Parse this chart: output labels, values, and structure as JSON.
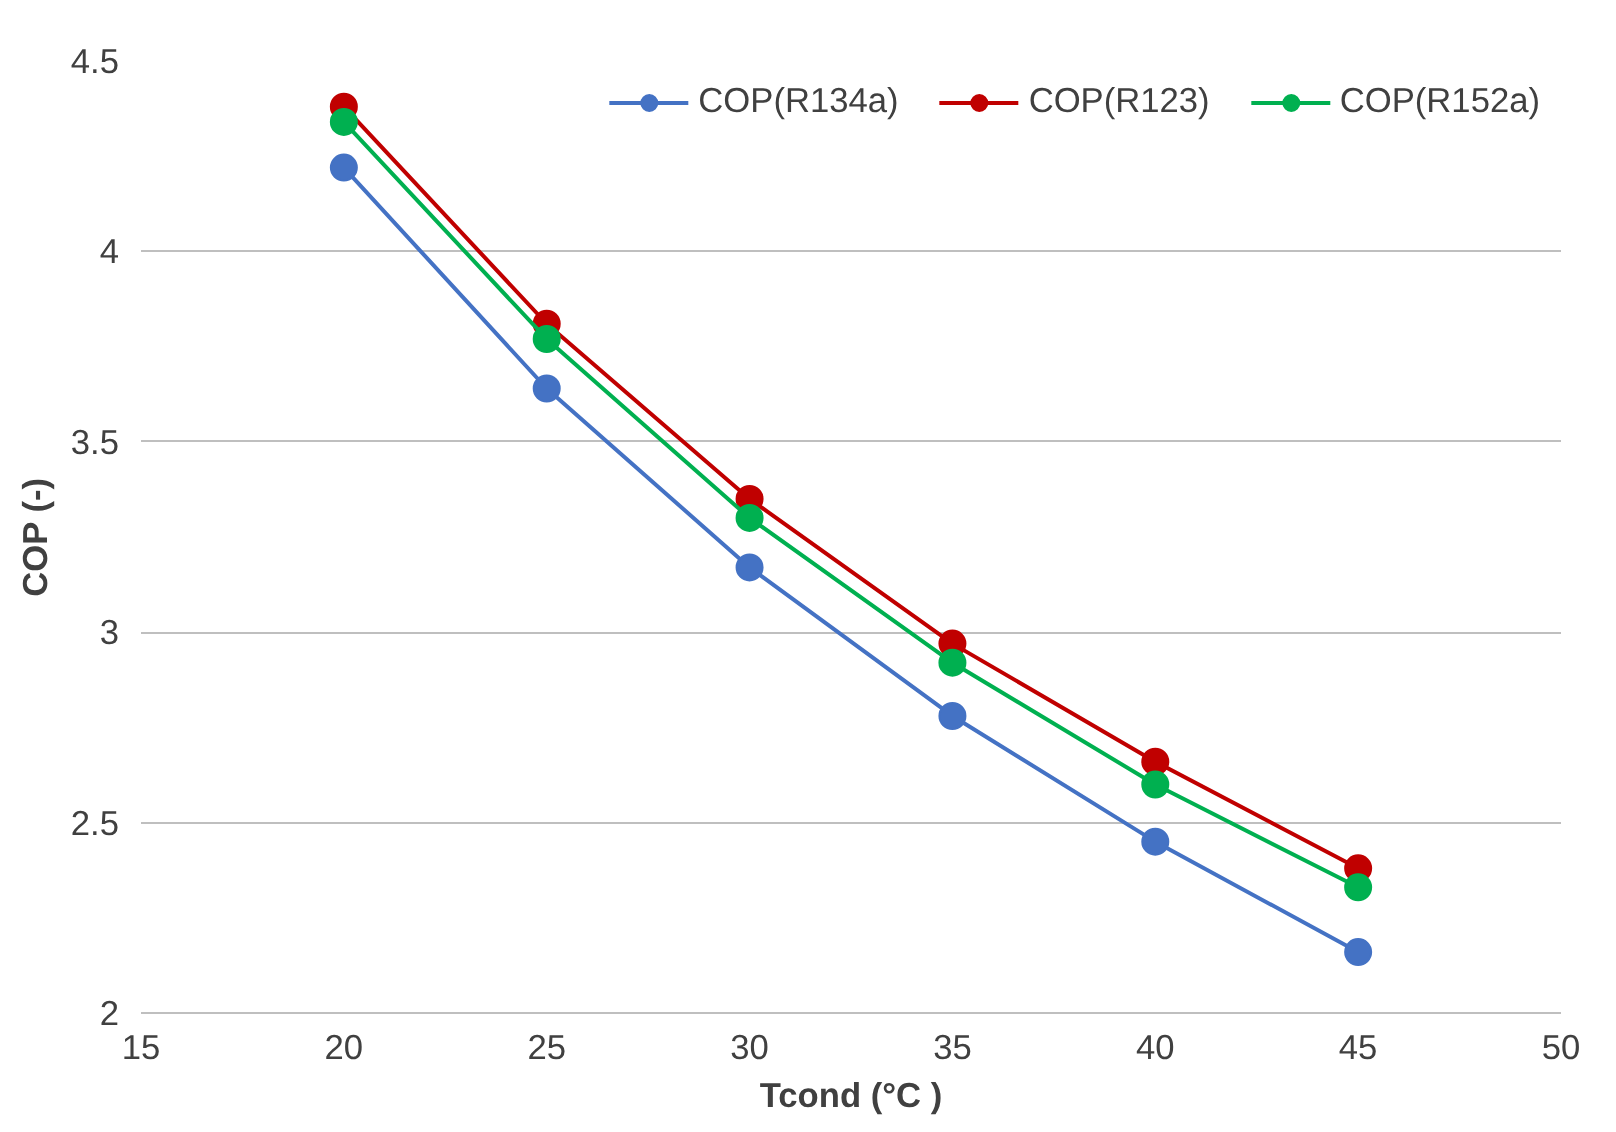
{
  "chart_data": {
    "type": "line",
    "xlabel": "Tcond (°C )",
    "ylabel": "COP (-)",
    "x": [
      20,
      25,
      30,
      35,
      40,
      45
    ],
    "series": [
      {
        "name": "COP(R134a)",
        "color": "#4472c4",
        "values": [
          4.22,
          3.64,
          3.17,
          2.78,
          2.45,
          2.16
        ]
      },
      {
        "name": "COP(R123)",
        "color": "#c00000",
        "values": [
          4.38,
          3.81,
          3.35,
          2.97,
          2.66,
          2.38
        ]
      },
      {
        "name": "COP(R152a)",
        "color": "#00b050",
        "values": [
          4.34,
          3.77,
          3.3,
          2.92,
          2.6,
          2.33
        ]
      }
    ],
    "xlim": [
      15,
      50
    ],
    "ylim": [
      2,
      4.5
    ],
    "xticks": [
      15,
      20,
      25,
      30,
      35,
      40,
      45,
      50
    ],
    "yticks": [
      2,
      2.5,
      3,
      3.5,
      4,
      4.5
    ],
    "grid": "y",
    "legend": "top right",
    "marker": "circle",
    "line_style": "solid"
  }
}
